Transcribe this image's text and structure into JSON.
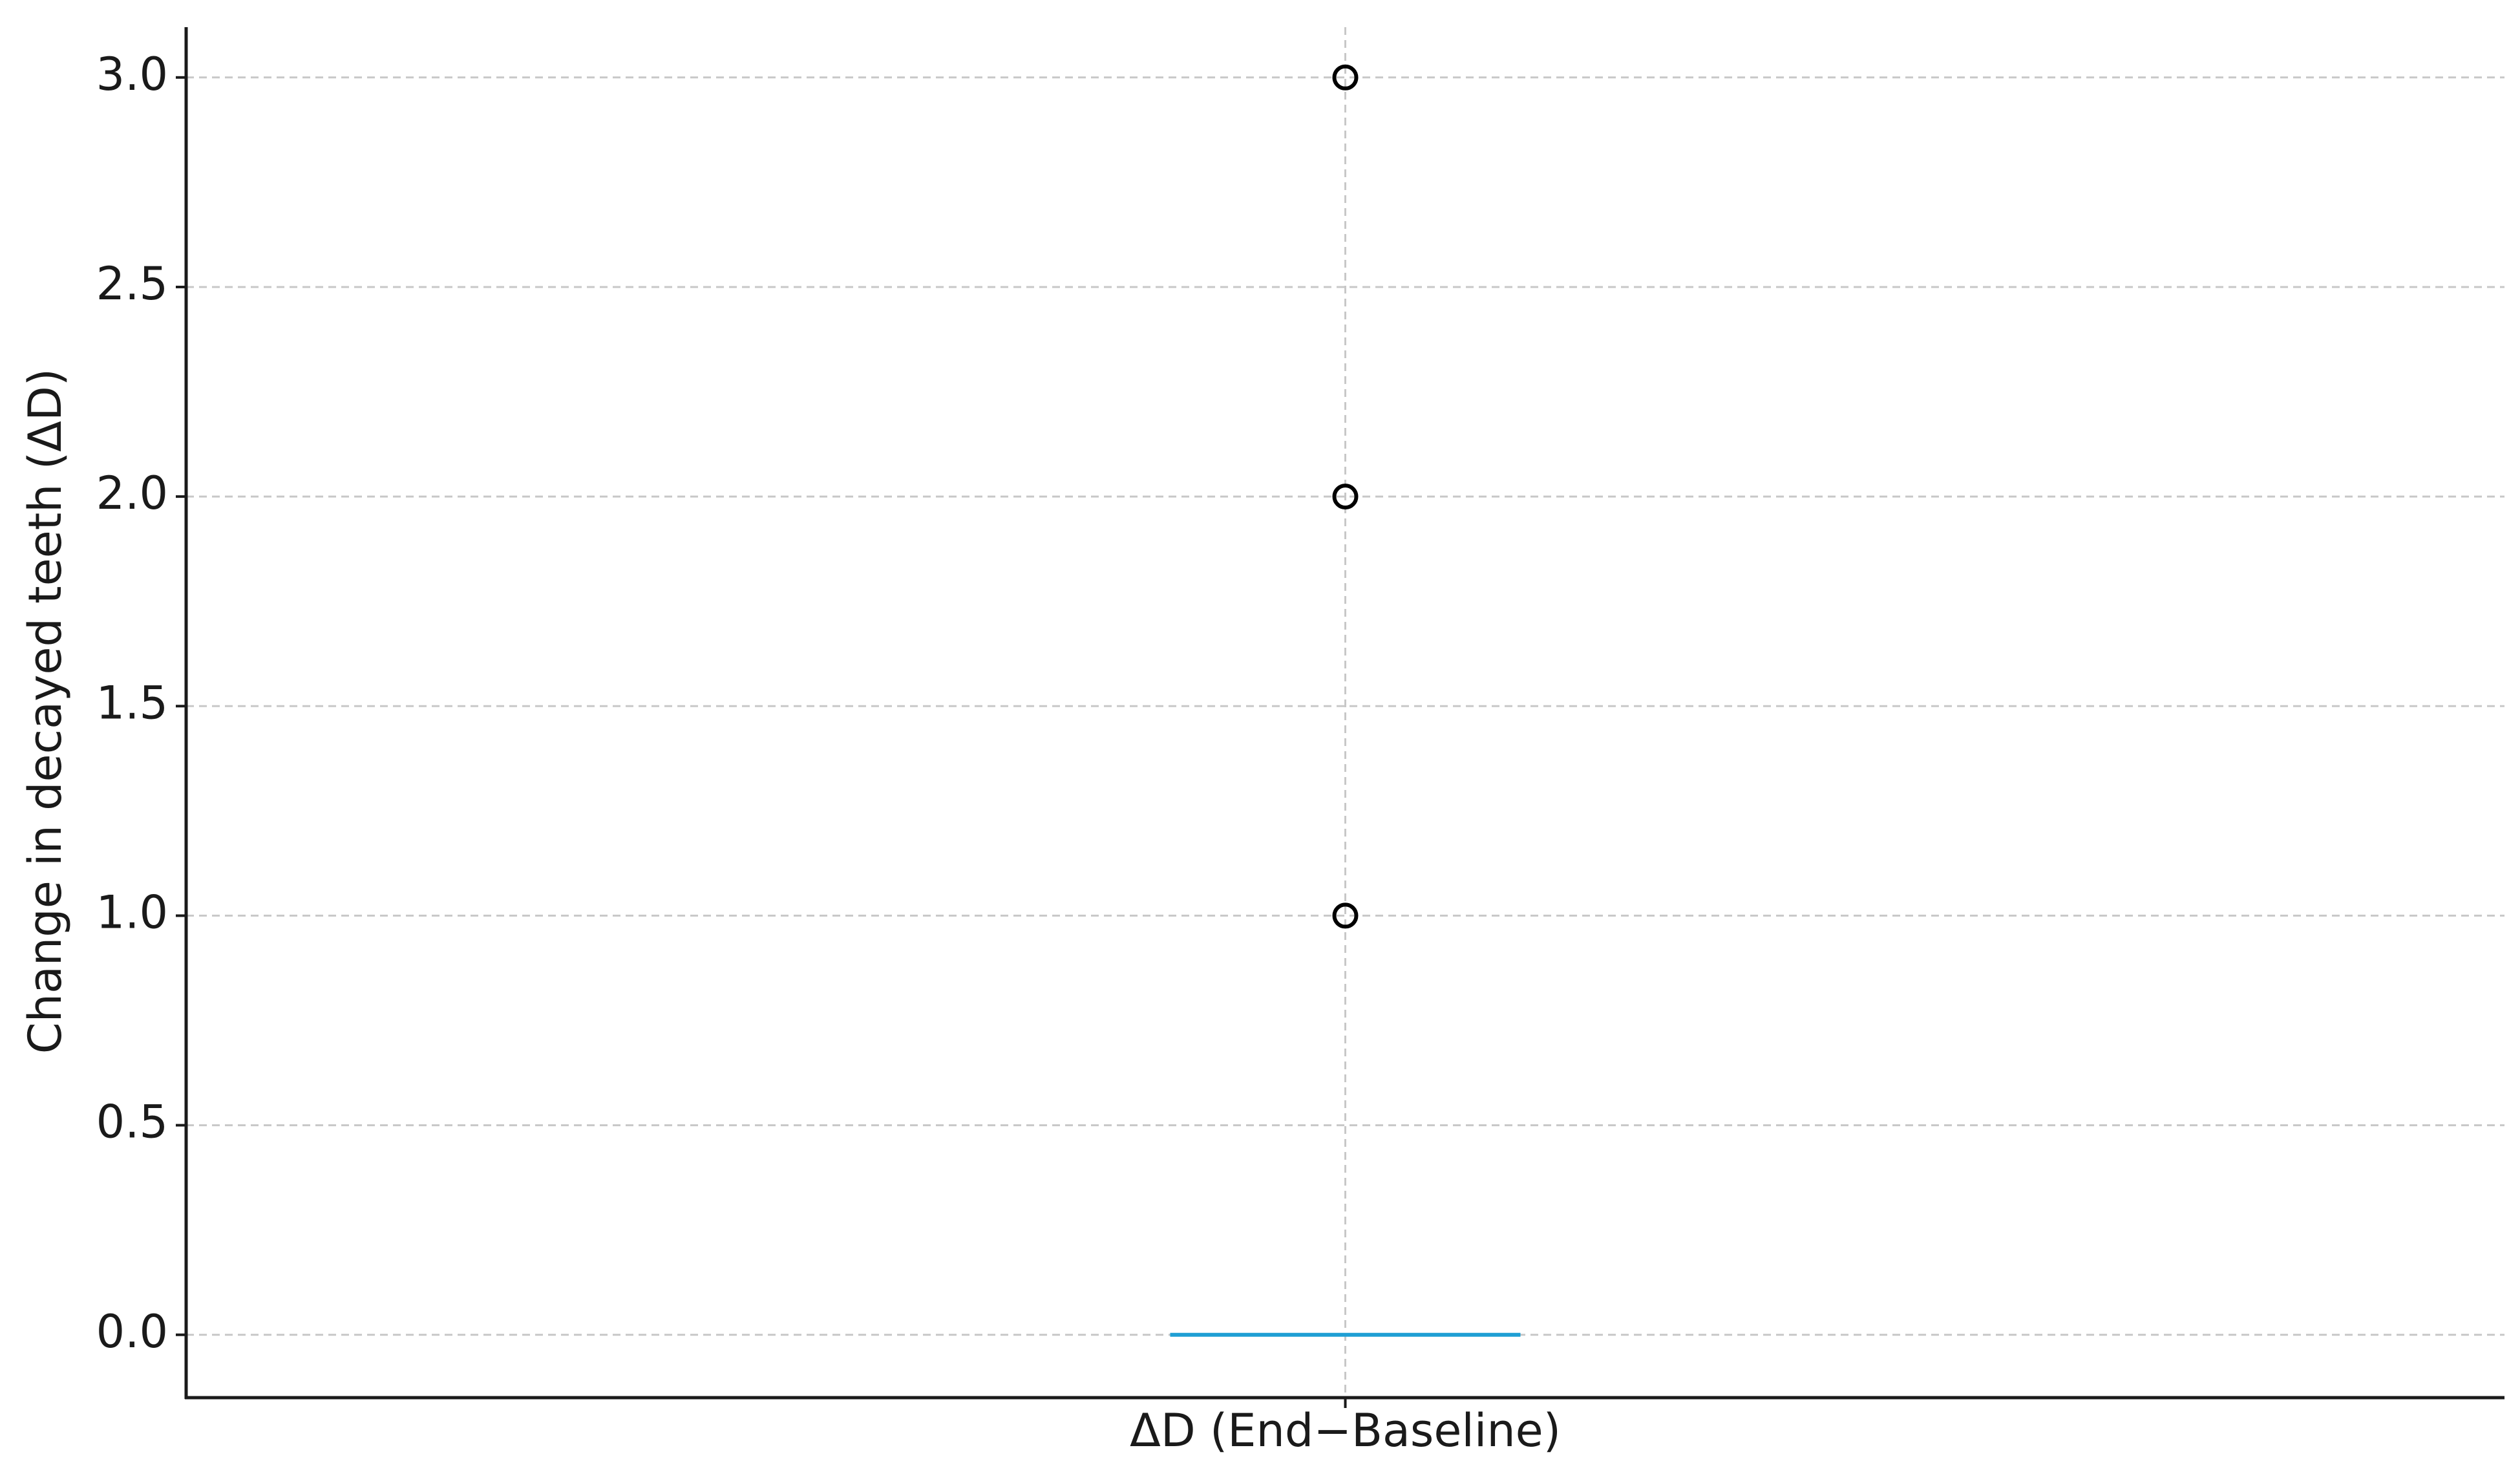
{
  "chart_data": {
    "type": "box",
    "ylabel": "Change in decayed teeth (ΔD)",
    "categories": [
      "ΔD (End−Baseline)"
    ],
    "boxes": [
      {
        "min": 0,
        "q1": 0,
        "median": 0,
        "q3": 0,
        "max": 0,
        "outliers": [
          1,
          2,
          3
        ]
      }
    ],
    "median_color": "#1f9fd4",
    "ylim": [
      -0.15,
      3.12
    ],
    "yticks": [
      {
        "value": 0,
        "label": "0.0"
      },
      {
        "value": 0.5,
        "label": "0.5"
      },
      {
        "value": 1,
        "label": "1.0"
      },
      {
        "value": 1.5,
        "label": "1.5"
      },
      {
        "value": 2,
        "label": "2.0"
      },
      {
        "value": 2.5,
        "label": "2.5"
      },
      {
        "value": 3,
        "label": "3.0"
      }
    ],
    "grid": true
  }
}
